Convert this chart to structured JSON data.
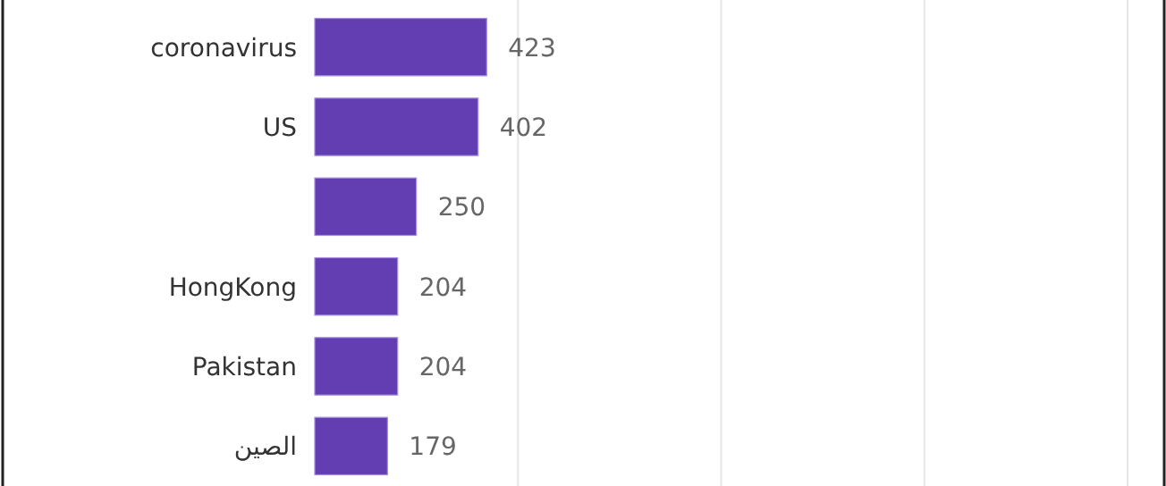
{
  "chart_data": {
    "type": "bar",
    "orientation": "horizontal",
    "categories": [
      "coronavirus",
      "US",
      null,
      "HongKong",
      "Pakistan",
      "الصين"
    ],
    "values": [
      423,
      402,
      250,
      204,
      204,
      179
    ],
    "color": "#633eb3",
    "xlim": [
      0,
      2090
    ],
    "xticks": [
      {
        "value": 500,
        "label": null
      },
      {
        "value": 1000,
        "label": null
      },
      {
        "value": 1500,
        "label": null
      },
      {
        "value": 2000,
        "label": null
      }
    ],
    "grid": "x",
    "tick_labels": "y",
    "data_labels": true
  }
}
